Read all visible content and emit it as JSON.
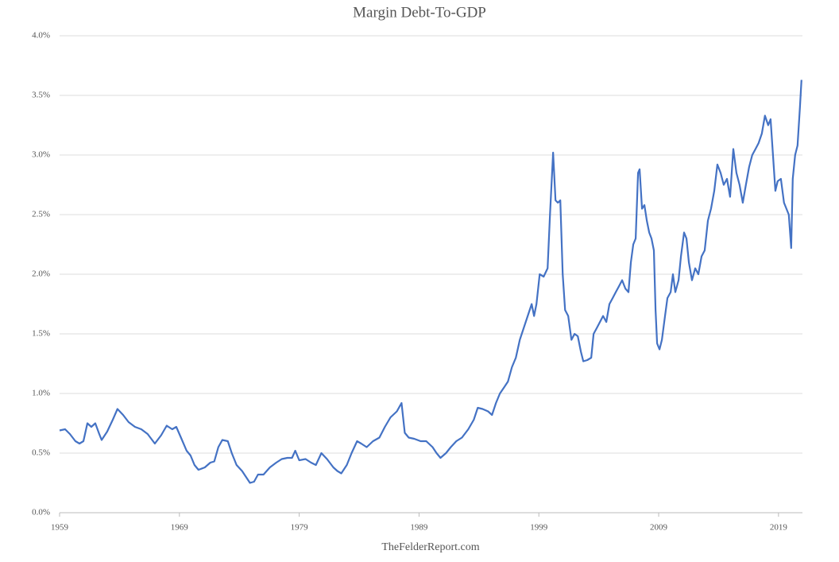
{
  "chart_data": {
    "type": "line",
    "title": "Margin Debt-To-GDP",
    "source": "TheFelderReport.com",
    "color": "#4472c4",
    "grid": true,
    "xlim": [
      1959,
      2021
    ],
    "xticks": [
      1959,
      1969,
      1979,
      1989,
      1999,
      2009,
      2019
    ],
    "ylim": [
      0,
      4
    ],
    "yticks": [
      {
        "value": 0,
        "label": "0.0%"
      },
      {
        "value": 0.5,
        "label": "0.5%"
      },
      {
        "value": 1,
        "label": "1.0%"
      },
      {
        "value": 1.5,
        "label": "1.5%"
      },
      {
        "value": 2,
        "label": "2.0%"
      },
      {
        "value": 2.5,
        "label": "2.5%"
      },
      {
        "value": 3,
        "label": "3.0%"
      },
      {
        "value": 3.5,
        "label": "3.5%"
      },
      {
        "value": 4,
        "label": "4.0%"
      }
    ],
    "x": [
      1959.0,
      1959.46,
      1959.86,
      1960.32,
      1960.66,
      1960.99,
      1961.32,
      1961.65,
      1961.98,
      1962.31,
      1962.51,
      1962.97,
      1963.44,
      1963.83,
      1964.3,
      1964.76,
      1965.29,
      1965.82,
      1966.35,
      1966.95,
      1967.48,
      1967.94,
      1968.4,
      1968.74,
      1969.13,
      1969.6,
      1969.93,
      1970.26,
      1970.59,
      1971.12,
      1971.58,
      1971.91,
      1972.25,
      1972.58,
      1973.04,
      1973.37,
      1973.77,
      1974.23,
      1974.56,
      1974.89,
      1975.23,
      1975.56,
      1976.02,
      1976.55,
      1977.08,
      1977.54,
      1978.01,
      1978.4,
      1978.67,
      1979.0,
      1979.53,
      1979.99,
      1980.39,
      1980.85,
      1981.32,
      1981.85,
      1982.18,
      1982.51,
      1982.97,
      1983.37,
      1983.83,
      1984.17,
      1984.63,
      1985.16,
      1985.69,
      1986.15,
      1986.62,
      1987.15,
      1987.54,
      1987.81,
      1988.14,
      1988.6,
      1989.13,
      1989.6,
      1990.13,
      1990.46,
      1990.79,
      1991.25,
      1991.65,
      1992.11,
      1992.58,
      1993.11,
      1993.57,
      1993.9,
      1994.3,
      1994.76,
      1995.09,
      1995.42,
      1995.75,
      1996.09,
      1996.42,
      1996.75,
      1997.08,
      1997.41,
      1997.74,
      1998.07,
      1998.4,
      1998.6,
      1998.8,
      1999.07,
      1999.4,
      1999.73,
      1999.93,
      2000.19,
      2000.39,
      2000.59,
      2000.79,
      2000.99,
      2001.19,
      2001.45,
      2001.72,
      2001.98,
      2002.25,
      2002.51,
      2002.71,
      2003.04,
      2003.37,
      2003.57,
      2003.84,
      2004.1,
      2004.36,
      2004.63,
      2004.89,
      2005.16,
      2005.42,
      2005.69,
      2005.95,
      2006.22,
      2006.48,
      2006.68,
      2006.88,
      2007.08,
      2007.28,
      2007.41,
      2007.61,
      2007.81,
      2008.01,
      2008.21,
      2008.4,
      2008.6,
      2008.74,
      2008.87,
      2009.07,
      2009.27,
      2009.53,
      2009.73,
      2010.0,
      2010.19,
      2010.39,
      2010.66,
      2010.86,
      2011.12,
      2011.32,
      2011.52,
      2011.78,
      2012.05,
      2012.31,
      2012.58,
      2012.84,
      2013.11,
      2013.37,
      2013.64,
      2013.9,
      2014.17,
      2014.43,
      2014.7,
      2014.96,
      2015.23,
      2015.49,
      2015.75,
      2016.02,
      2016.28,
      2016.55,
      2016.81,
      2017.08,
      2017.34,
      2017.61,
      2017.87,
      2018.14,
      2018.34,
      2018.54,
      2018.74,
      2018.93,
      2019.2,
      2019.46,
      2019.66,
      2019.86,
      2020.06,
      2020.19,
      2020.39,
      2020.59,
      2020.79,
      2020.92
    ],
    "values": [
      0.69,
      0.7,
      0.66,
      0.6,
      0.58,
      0.6,
      0.75,
      0.72,
      0.75,
      0.66,
      0.61,
      0.68,
      0.78,
      0.87,
      0.82,
      0.76,
      0.72,
      0.7,
      0.66,
      0.58,
      0.65,
      0.73,
      0.7,
      0.72,
      0.63,
      0.52,
      0.48,
      0.4,
      0.36,
      0.38,
      0.42,
      0.43,
      0.55,
      0.61,
      0.6,
      0.5,
      0.4,
      0.35,
      0.3,
      0.25,
      0.26,
      0.32,
      0.32,
      0.38,
      0.42,
      0.45,
      0.46,
      0.46,
      0.52,
      0.44,
      0.45,
      0.42,
      0.4,
      0.5,
      0.45,
      0.38,
      0.35,
      0.33,
      0.4,
      0.5,
      0.6,
      0.58,
      0.55,
      0.6,
      0.63,
      0.72,
      0.8,
      0.85,
      0.92,
      0.67,
      0.63,
      0.62,
      0.6,
      0.6,
      0.55,
      0.5,
      0.46,
      0.5,
      0.55,
      0.6,
      0.63,
      0.7,
      0.78,
      0.88,
      0.87,
      0.85,
      0.82,
      0.92,
      1.0,
      1.05,
      1.1,
      1.22,
      1.3,
      1.45,
      1.55,
      1.65,
      1.75,
      1.65,
      1.75,
      2.0,
      1.98,
      2.05,
      2.5,
      3.02,
      2.62,
      2.6,
      2.62,
      2.0,
      1.7,
      1.65,
      1.45,
      1.5,
      1.48,
      1.35,
      1.27,
      1.28,
      1.3,
      1.5,
      1.55,
      1.6,
      1.65,
      1.6,
      1.75,
      1.8,
      1.85,
      1.9,
      1.95,
      1.88,
      1.85,
      2.1,
      2.25,
      2.3,
      2.85,
      2.88,
      2.55,
      2.58,
      2.45,
      2.35,
      2.3,
      2.2,
      1.7,
      1.42,
      1.37,
      1.45,
      1.65,
      1.8,
      1.85,
      2.0,
      1.85,
      1.95,
      2.15,
      2.35,
      2.3,
      2.1,
      1.95,
      2.05,
      2.0,
      2.15,
      2.2,
      2.45,
      2.55,
      2.7,
      2.92,
      2.85,
      2.75,
      2.8,
      2.65,
      3.05,
      2.85,
      2.75,
      2.6,
      2.75,
      2.9,
      3.0,
      3.05,
      3.1,
      3.18,
      3.33,
      3.25,
      3.3,
      3.0,
      2.7,
      2.78,
      2.8,
      2.6,
      2.55,
      2.5,
      2.22,
      2.8,
      3.0,
      3.08,
      3.4,
      3.63
    ]
  }
}
